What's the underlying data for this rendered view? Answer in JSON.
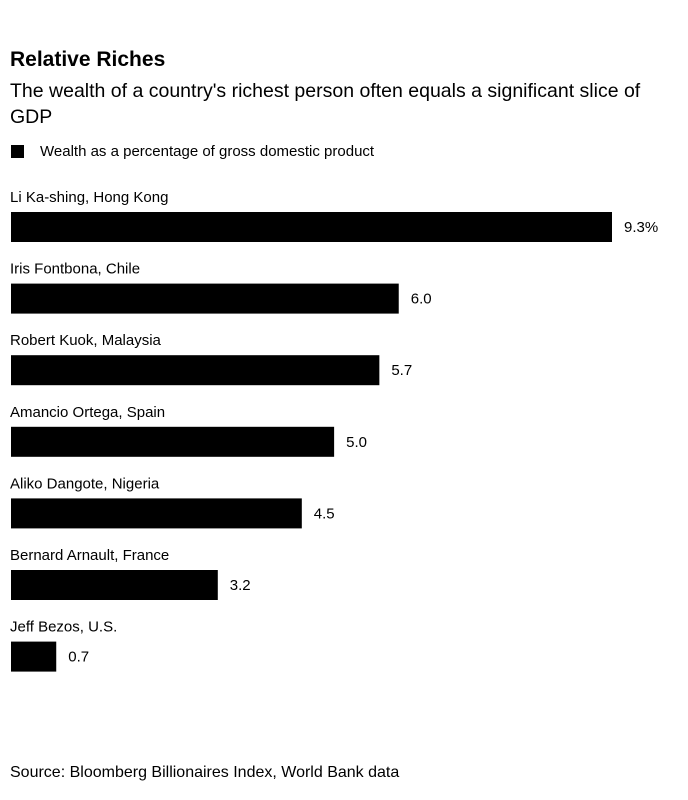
{
  "chart_data": {
    "type": "bar",
    "orientation": "horizontal",
    "title": "Relative Riches",
    "subtitle": "The wealth of a country's richest person often equals a significant slice of GDP",
    "source": "Source: Bloomberg Billionaires Index, World Bank data",
    "categories": [
      "Li Ka-shing, Hong Kong",
      "Iris Fontbona, Chile",
      "Robert Kuok, Malaysia",
      "Amancio Ortega, Spain",
      "Aliko Dangote, Nigeria",
      "Bernard Arnault, France",
      "Jeff Bezos, U.S."
    ],
    "series": [
      {
        "name": "Wealth as a percentage of gross domestic product",
        "color": "#000000",
        "values": [
          9.3,
          6.0,
          5.7,
          5.0,
          4.5,
          3.2,
          0.7
        ],
        "value_labels": [
          "9.3%",
          "6.0",
          "5.7",
          "5.0",
          "4.5",
          "3.2",
          "0.7"
        ]
      }
    ]
  }
}
